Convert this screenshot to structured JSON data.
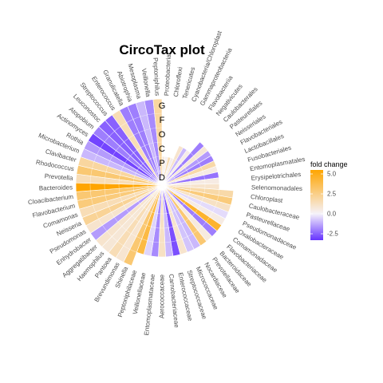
{
  "chart_data": {
    "type": "circotax",
    "title": "CircoTax plot",
    "ranks": [
      "G",
      "F",
      "O",
      "C",
      "P",
      "D"
    ],
    "colors": {
      "low": "#6633ff",
      "mid": "#f5f2fa",
      "high": "#ffa500"
    },
    "legend": {
      "title": "fold change",
      "range": [
        -3.3,
        5.5
      ],
      "ticks": [
        5.0,
        2.5,
        0.0,
        -2.5
      ],
      "tick_labels": [
        "5.0",
        "2.5",
        "0.0",
        "-2.5"
      ],
      "placement": "right"
    },
    "taxa": [
      {
        "name": "Proteobacteria",
        "rank": "P",
        "fc": 0.6
      },
      {
        "name": "Chloroflexi",
        "rank": "P",
        "fc": 0.2
      },
      {
        "name": "Tenericutes",
        "rank": "P",
        "fc": 1.5
      },
      {
        "name": "Cyanobacteria/Chloroplast",
        "rank": "P",
        "fc": 0.3
      },
      {
        "name": "Gammaproteobacteria",
        "rank": "C",
        "fc": 1.0
      },
      {
        "name": "Flavobacteriia",
        "rank": "C",
        "fc": -1.0
      },
      {
        "name": "Negativicutes",
        "rank": "C",
        "fc": 0.4
      },
      {
        "name": "Caulobacterales",
        "rank": "O",
        "fc": -2.0
      },
      {
        "name": "Pasteurellales",
        "rank": "O",
        "fc": 0.8
      },
      {
        "name": "Neisseriales",
        "rank": "O",
        "fc": -1.5
      },
      {
        "name": "Flavobacteriales",
        "rank": "O",
        "fc": -2.0
      },
      {
        "name": "Lactobacillales",
        "rank": "O",
        "fc": 1.8
      },
      {
        "name": "Fusobacteriales",
        "rank": "O",
        "fc": 0.5
      },
      {
        "name": "Entomoplasmatales",
        "rank": "O",
        "fc": -2.2
      },
      {
        "name": "Erysipelotrichales",
        "rank": "O",
        "fc": 0.5
      },
      {
        "name": "Selenomonadales",
        "rank": "O",
        "fc": 1.0
      },
      {
        "name": "Chloroplast",
        "rank": "F",
        "fc": 1.8
      },
      {
        "name": "Caulobacteraceae",
        "rank": "F",
        "fc": 2.8
      },
      {
        "name": "Pasteurellaceae",
        "rank": "F",
        "fc": 1.2
      },
      {
        "name": "Pseudomonadaceae",
        "rank": "F",
        "fc": -0.4
      },
      {
        "name": "Oxalobacteraceae",
        "rank": "F",
        "fc": 0.5
      },
      {
        "name": "Comamonadaceae",
        "rank": "F",
        "fc": 4.5
      },
      {
        "name": "Flavobacteriaceae",
        "rank": "F",
        "fc": -2.0
      },
      {
        "name": "Bacteroidaceae",
        "rank": "F",
        "fc": 0.6
      },
      {
        "name": "Prevotellaceae",
        "rank": "F",
        "fc": 3.0
      },
      {
        "name": "Nocardiaceae",
        "rank": "F",
        "fc": -1.0
      },
      {
        "name": "Micrococcaceae",
        "rank": "F",
        "fc": -0.8
      },
      {
        "name": "Streptococcaceae",
        "rank": "F",
        "fc": 1.0
      },
      {
        "name": "Enterococcaceae",
        "rank": "F",
        "fc": -2.8
      },
      {
        "name": "Carnobacteriaceae",
        "rank": "F",
        "fc": -1.0
      },
      {
        "name": "Aerococcaceae",
        "rank": "F",
        "fc": 1.2
      },
      {
        "name": "Entomoplasmataceae",
        "rank": "F",
        "fc": -1.8
      },
      {
        "name": "Veillonellaceae",
        "rank": "F",
        "fc": -0.5
      },
      {
        "name": "Peptoniphilaceae",
        "rank": "F",
        "fc": 4.0
      },
      {
        "name": "Shinella",
        "rank": "G",
        "fc": 3.0
      },
      {
        "name": "Brevundimonas",
        "rank": "G",
        "fc": 0.9
      },
      {
        "name": "Pantoea",
        "rank": "G",
        "fc": 1.5
      },
      {
        "name": "Haemophilus",
        "rank": "G",
        "fc": 0.8
      },
      {
        "name": "Aggregatibacter",
        "rank": "G",
        "fc": 1.0
      },
      {
        "name": "Enhydrobacter",
        "rank": "G",
        "fc": -1.5
      },
      {
        "name": "Pseudomonas",
        "rank": "G",
        "fc": 1.0
      },
      {
        "name": "Neisseria",
        "rank": "G",
        "fc": 2.2
      },
      {
        "name": "Comamonas",
        "rank": "G",
        "fc": 1.5
      },
      {
        "name": "Flavobacterium",
        "rank": "G",
        "fc": 2.8
      },
      {
        "name": "Cloacibacterium",
        "rank": "G",
        "fc": 3.0
      },
      {
        "name": "Bacteroides",
        "rank": "G",
        "fc": 5.5
      },
      {
        "name": "Prevotella",
        "rank": "G",
        "fc": 1.5
      },
      {
        "name": "Rhodococcus",
        "rank": "G",
        "fc": 3.0
      },
      {
        "name": "Clavibacter",
        "rank": "G",
        "fc": 2.0
      },
      {
        "name": "Microbacterium",
        "rank": "G",
        "fc": -1.0
      },
      {
        "name": "Rothia",
        "rank": "G",
        "fc": -1.5
      },
      {
        "name": "Actinomyces",
        "rank": "G",
        "fc": -3.0
      },
      {
        "name": "Atopobium",
        "rank": "G",
        "fc": -2.0
      },
      {
        "name": "Leuconostoc",
        "rank": "G",
        "fc": -2.5
      },
      {
        "name": "Streptococcus",
        "rank": "G",
        "fc": -2.5
      },
      {
        "name": "Enterococcus",
        "rank": "G",
        "fc": 1.5
      },
      {
        "name": "Granulicatella",
        "rank": "G",
        "fc": -2.0
      },
      {
        "name": "Abiotrophia",
        "rank": "G",
        "fc": -2.0
      },
      {
        "name": "Mesoplasma",
        "rank": "G",
        "fc": -1.0
      },
      {
        "name": "Veillonella",
        "rank": "G",
        "fc": -1.8
      },
      {
        "name": "Peptoniphilus",
        "rank": "G",
        "fc": 2.0
      }
    ]
  }
}
